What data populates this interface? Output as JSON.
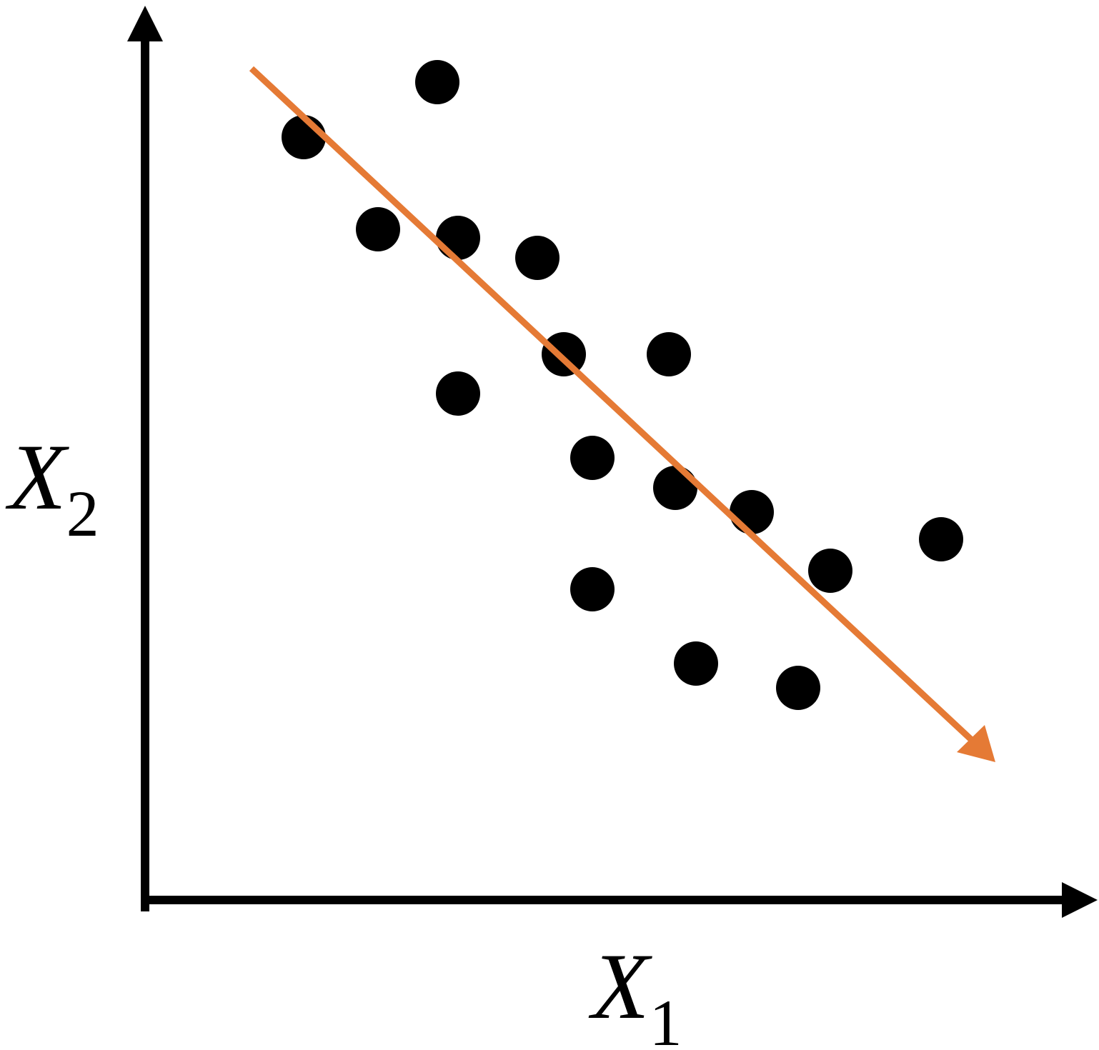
{
  "axes": {
    "y_label": {
      "base": "X",
      "subscript": "2"
    },
    "x_label": {
      "base": "X",
      "subscript": "1"
    }
  }
}
